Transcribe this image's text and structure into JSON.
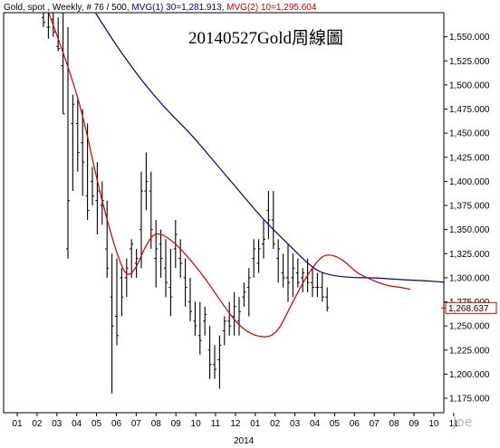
{
  "header": {
    "instrument": "Gold, spot , Weekly, # 76 / 500, ",
    "mvg1": "MVG(1) 30=1,281.913",
    "sep": ", ",
    "mvg2": "MVG(2) 10=1,295.604"
  },
  "chart_data": {
    "type": "line",
    "title": "20140527Gold周線圖",
    "ylim": [
      1160,
      1575
    ],
    "yticks": [
      1175,
      1200,
      1225,
      1250,
      1275,
      1300,
      1325,
      1350,
      1375,
      1400,
      1425,
      1450,
      1475,
      1500,
      1525,
      1550
    ],
    "ytick_labels": [
      "1,175.000",
      "1,200.000",
      "1,225.000",
      "1,250.000",
      "1,275.000",
      "1,300.000",
      "1,325.000",
      "1,350.000",
      "1,375.000",
      "1,400.000",
      "1,425.000",
      "1,450.000",
      "1,475.000",
      "1,500.000",
      "1,525.000",
      "1,550.000"
    ],
    "month_ticks": [
      "01",
      "02",
      "03",
      "04",
      "05",
      "06",
      "07",
      "08",
      "09",
      "10",
      "11",
      "12",
      "01",
      "02",
      "03",
      "04",
      "05",
      "06",
      "07",
      "08",
      "09",
      "10",
      "11"
    ],
    "year_label": "2014",
    "last_price_label": "1,268.637",
    "last_price": 1268.637,
    "ohlc": [
      [
        1580,
        1560,
        1570,
        1565
      ],
      [
        1575,
        1548,
        1560,
        1560
      ],
      [
        1578,
        1550,
        1568,
        1555
      ],
      [
        1570,
        1535,
        1540,
        1538
      ],
      [
        1600,
        1470,
        1520,
        1470
      ],
      [
        1560,
        1320,
        1330,
        1380
      ],
      [
        1490,
        1390,
        1460,
        1480
      ],
      [
        1485,
        1410,
        1460,
        1430
      ],
      [
        1475,
        1385,
        1440,
        1420
      ],
      [
        1460,
        1360,
        1385,
        1370
      ],
      [
        1415,
        1375,
        1400,
        1385
      ],
      [
        1420,
        1345,
        1380,
        1390
      ],
      [
        1400,
        1355,
        1375,
        1380
      ],
      [
        1380,
        1300,
        1330,
        1310
      ],
      [
        1325,
        1180,
        1280,
        1250
      ],
      [
        1320,
        1230,
        1260,
        1240
      ],
      [
        1310,
        1260,
        1300,
        1280
      ],
      [
        1320,
        1280,
        1300,
        1310
      ],
      [
        1340,
        1300,
        1330,
        1335
      ],
      [
        1330,
        1300,
        1315,
        1320
      ],
      [
        1410,
        1310,
        1350,
        1390
      ],
      [
        1430,
        1370,
        1390,
        1400
      ],
      [
        1410,
        1330,
        1390,
        1350
      ],
      [
        1360,
        1290,
        1320,
        1330
      ],
      [
        1350,
        1300,
        1335,
        1320
      ],
      [
        1340,
        1280,
        1310,
        1295
      ],
      [
        1330,
        1260,
        1290,
        1280
      ],
      [
        1360,
        1310,
        1330,
        1345
      ],
      [
        1340,
        1300,
        1320,
        1315
      ],
      [
        1320,
        1270,
        1300,
        1290
      ],
      [
        1300,
        1255,
        1275,
        1265
      ],
      [
        1275,
        1240,
        1255,
        1250
      ],
      [
        1275,
        1220,
        1240,
        1235
      ],
      [
        1270,
        1240,
        1255,
        1262
      ],
      [
        1250,
        1195,
        1225,
        1210
      ],
      [
        1230,
        1195,
        1210,
        1205
      ],
      [
        1240,
        1185,
        1215,
        1230
      ],
      [
        1260,
        1230,
        1245,
        1255
      ],
      [
        1275,
        1240,
        1255,
        1250
      ],
      [
        1285,
        1240,
        1260,
        1270
      ],
      [
        1280,
        1240,
        1255,
        1265
      ],
      [
        1295,
        1270,
        1280,
        1285
      ],
      [
        1310,
        1260,
        1290,
        1300
      ],
      [
        1340,
        1300,
        1320,
        1330
      ],
      [
        1340,
        1305,
        1315,
        1330
      ],
      [
        1360,
        1320,
        1335,
        1340
      ],
      [
        1390,
        1340,
        1370,
        1360
      ],
      [
        1390,
        1330,
        1360,
        1335
      ],
      [
        1340,
        1295,
        1320,
        1330
      ],
      [
        1325,
        1290,
        1305,
        1300
      ],
      [
        1335,
        1275,
        1300,
        1295
      ],
      [
        1325,
        1280,
        1300,
        1310
      ],
      [
        1320,
        1290,
        1305,
        1295
      ],
      [
        1310,
        1285,
        1300,
        1305
      ],
      [
        1320,
        1285,
        1300,
        1295
      ],
      [
        1310,
        1280,
        1295,
        1290
      ],
      [
        1305,
        1280,
        1290,
        1290
      ],
      [
        1305,
        1275,
        1290,
        1280
      ],
      [
        1290,
        1265,
        1280,
        1269
      ]
    ],
    "series": [
      {
        "name": "MVG(1) 30",
        "color": "#00008b",
        "points": [
          [
            5,
            1620
          ],
          [
            10,
            1580
          ],
          [
            15,
            1540
          ],
          [
            20,
            1505
          ],
          [
            25,
            1475
          ],
          [
            30,
            1450
          ],
          [
            35,
            1420
          ],
          [
            40,
            1390
          ],
          [
            45,
            1360
          ],
          [
            50,
            1335
          ],
          [
            55,
            1310
          ],
          [
            58,
            1303
          ],
          [
            63,
            1300
          ],
          [
            68,
            1300
          ],
          [
            73,
            1298
          ],
          [
            78,
            1297
          ],
          [
            83,
            1295
          ],
          [
            88,
            1293
          ],
          [
            92,
            1292
          ],
          [
            95,
            1291
          ]
        ]
      },
      {
        "name": "MVG(2) 10",
        "color": "#cc0000",
        "points": [
          [
            0,
            1590
          ],
          [
            5,
            1520
          ],
          [
            8,
            1470
          ],
          [
            11,
            1400
          ],
          [
            13,
            1360
          ],
          [
            15,
            1325
          ],
          [
            17,
            1300
          ],
          [
            19,
            1310
          ],
          [
            21,
            1335
          ],
          [
            23,
            1348
          ],
          [
            26,
            1340
          ],
          [
            29,
            1325
          ],
          [
            33,
            1300
          ],
          [
            37,
            1270
          ],
          [
            40,
            1250
          ],
          [
            43,
            1240
          ],
          [
            46,
            1238
          ],
          [
            48,
            1245
          ],
          [
            50,
            1265
          ],
          [
            53,
            1295
          ],
          [
            56,
            1318
          ],
          [
            58,
            1325
          ],
          [
            61,
            1320
          ],
          [
            64,
            1305
          ],
          [
            67,
            1298
          ],
          [
            70,
            1292
          ],
          [
            73,
            1290
          ],
          [
            75,
            1288
          ]
        ]
      }
    ]
  },
  "colors": {
    "up_bar": "#000000",
    "mvg1": "#00008b",
    "mvg2": "#cc0000",
    "last_label": "#cc0000",
    "watermark": "#b9b9b9"
  },
  "watermark": "Joe"
}
